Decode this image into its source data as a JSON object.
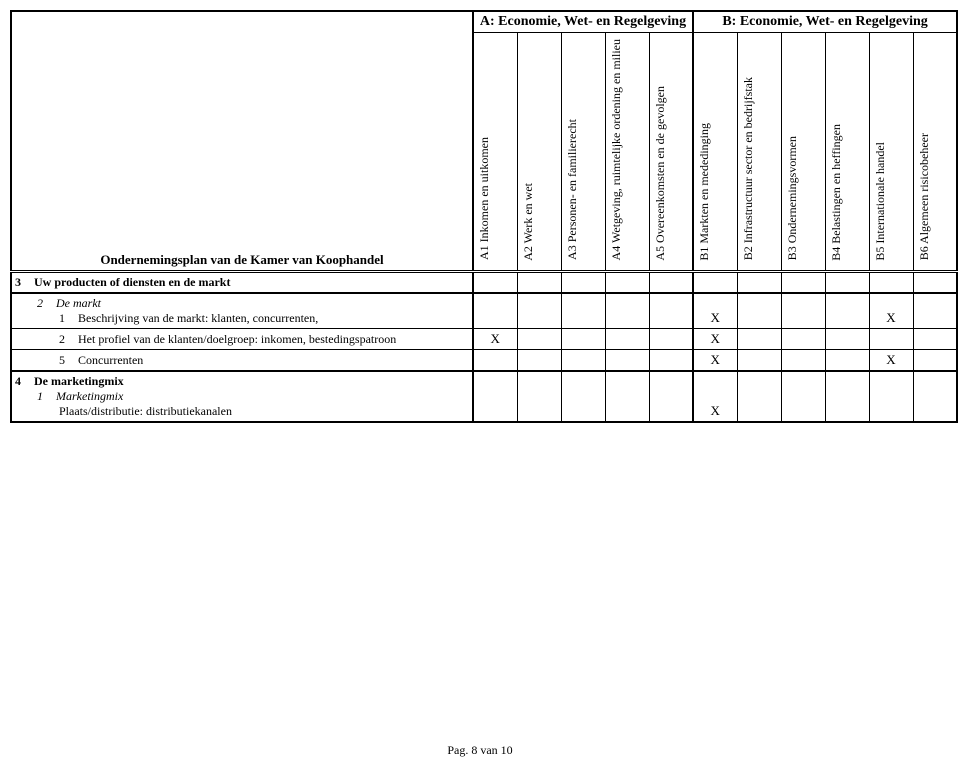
{
  "header": {
    "groupA": "A: Economie, Wet- en Regelgeving",
    "groupB": "B: Economie, Wet- en Regelgeving",
    "rowTitle": "Ondernemingsplan van de Kamer van Koophandel",
    "colsA": [
      "A1 Inkomen en uitkomen",
      "A2 Werk en wet",
      "A3 Personen- en familierecht",
      "A4 Wetgeving, ruimtelijke ordening en milieu",
      "A5 Overeenkomsten en de gevolgen"
    ],
    "colsB": [
      "B1 Markten en mededinging",
      "B2 Infrastructuur sector en bedrijfstak",
      "B3 Ondernemingsvormen",
      "B4 Belastingen en heffingen",
      "B5 Internationale handel",
      "B6 Algemeen risicobeheer"
    ]
  },
  "section3": {
    "num": "3",
    "title": "Uw producten of diensten en de markt",
    "sub2_num": "2",
    "sub2_title": "De markt",
    "row1_num": "1",
    "row1_text": "Beschrijving van de markt: klanten, concurrenten,",
    "row2_num": "2",
    "row2_text": "Het profiel van de klanten/doelgroep: inkomen, bestedingspatroon",
    "row5_num": "5",
    "row5_text": "Concurrenten"
  },
  "section4": {
    "num": "4",
    "title": "De marketingmix",
    "sub1_num": "1",
    "sub1_title": "Marketingmix",
    "row_text": "Plaats/distributie: distributiekanalen"
  },
  "marks": {
    "X": "X"
  },
  "footer": "Pag. 8 van 10"
}
